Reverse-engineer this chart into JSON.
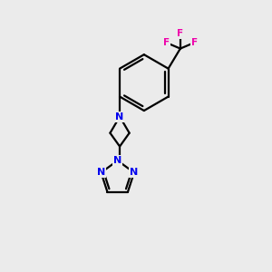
{
  "background_color": "#ebebeb",
  "bond_color": "#000000",
  "N_color": "#0000ee",
  "F_color": "#ee00aa",
  "figsize": [
    3.0,
    3.0
  ],
  "dpi": 100,
  "lw": 1.6,
  "xlim": [
    0,
    10
  ],
  "ylim": [
    0,
    10
  ]
}
